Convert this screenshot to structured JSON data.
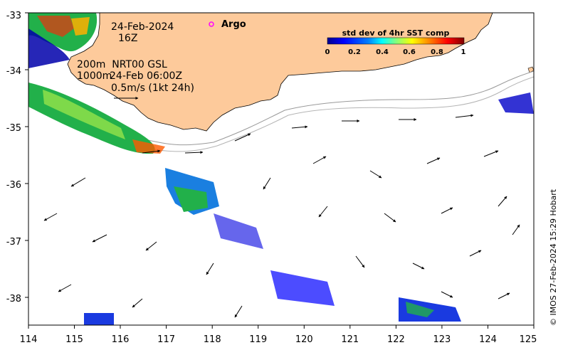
{
  "map": {
    "lon_ticks": [
      "114",
      "115",
      "116",
      "117",
      "118",
      "119",
      "120",
      "121",
      "122",
      "123",
      "124",
      "125"
    ],
    "lat_ticks": [
      "-33",
      "-34",
      "-35",
      "-36",
      "-37",
      "-38"
    ],
    "lon_range": [
      114,
      125
    ],
    "lat_range": [
      -38.5,
      -32.95
    ],
    "land_color": "#fdca9b",
    "frame_color": "#000000"
  },
  "annotations": {
    "date": "24-Feb-2024",
    "hour": "16Z",
    "contour_line1": "200m  NRT00 GSL",
    "contour_line2a": "1000m",
    "contour_line2b": "24-Feb 06:00Z",
    "scale_label": "0.5m/s (1kt 24h)",
    "argo_label": "Argo",
    "argo_marker_color": "#ff00ff"
  },
  "colorbar": {
    "title": "std dev of 4hr SST comp",
    "ticks": [
      "0",
      "0.2",
      "0.4",
      "0.6",
      "0.8",
      "1"
    ],
    "colors": [
      "#00008f",
      "#0000ff",
      "#0080ff",
      "#00ffff",
      "#80ff80",
      "#ffff00",
      "#ff8000",
      "#ff0000",
      "#800000"
    ]
  },
  "credit": "© IMOS 27-Feb-2024 15:29 Hobart"
}
